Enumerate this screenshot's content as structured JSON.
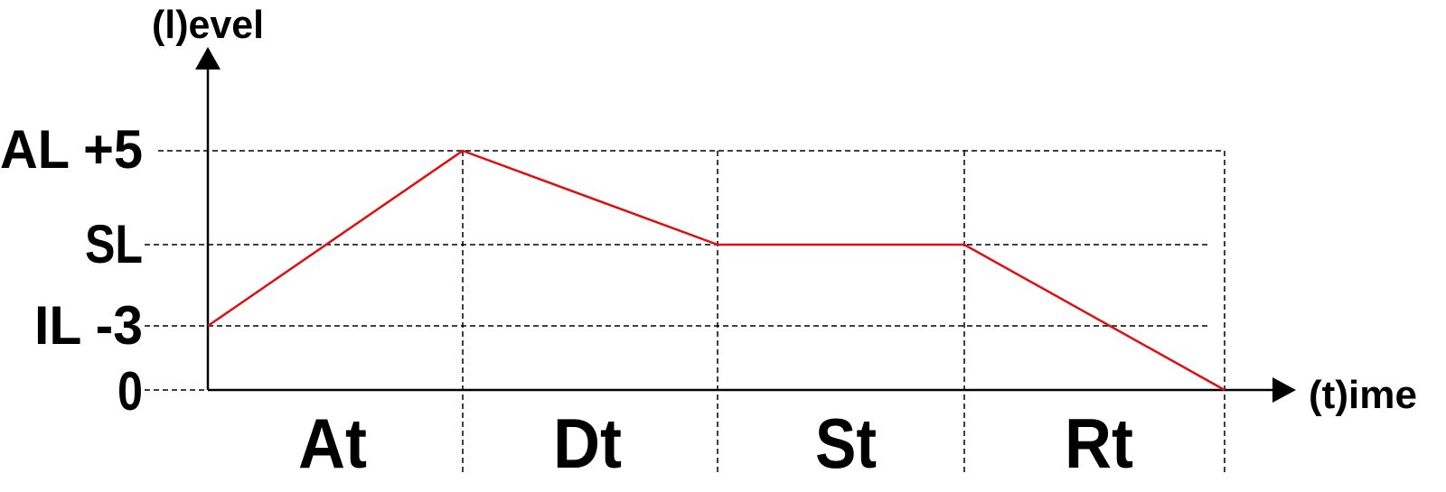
{
  "axes": {
    "y_label": "(l)evel",
    "x_label": "(t)ime"
  },
  "levels": [
    "AL +5",
    "SL",
    "IL -3",
    "0"
  ],
  "phases": [
    "At",
    "Dt",
    "St",
    "Rt"
  ]
}
